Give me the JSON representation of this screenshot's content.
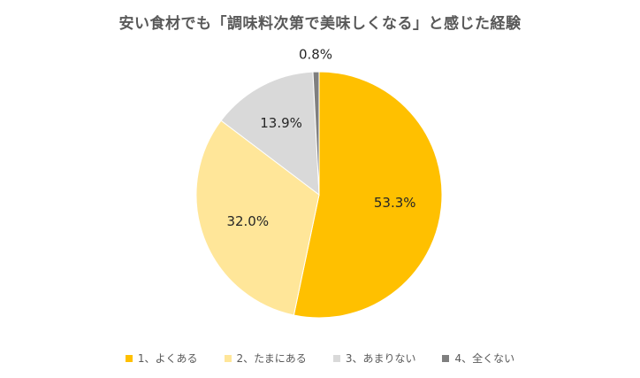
{
  "chart_data": {
    "type": "pie",
    "title": "安い食材でも「調味料次第で美味しくなる」と感じた経験",
    "categories": [
      "1、よくある",
      "2、たまにある",
      "3、あまりない",
      "4、全くない"
    ],
    "values": [
      53.3,
      32.0,
      13.9,
      0.8
    ],
    "value_labels": [
      "53.3%",
      "32.0%",
      "13.9%",
      "0.8%"
    ],
    "colors": [
      "#FFC000",
      "#FFE699",
      "#D9D9D9",
      "#7F7F7F"
    ],
    "legend_position": "bottom",
    "start_angle": "top",
    "direction": "clockwise"
  }
}
